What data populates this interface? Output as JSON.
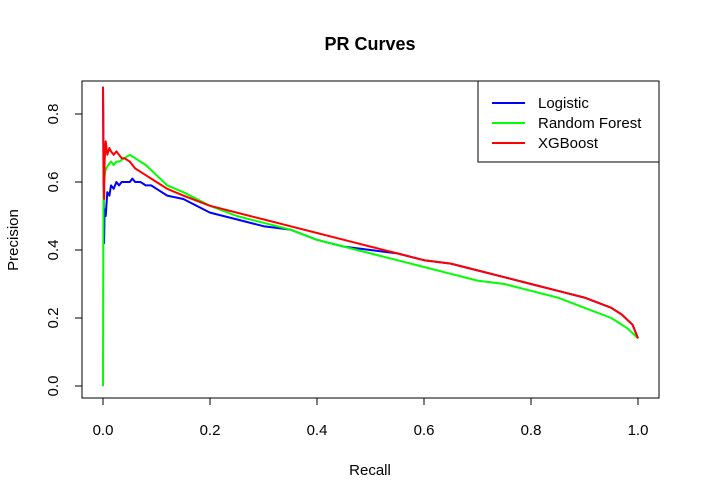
{
  "chart_data": {
    "type": "line",
    "title": "PR Curves",
    "xlabel": "Recall",
    "ylabel": "Precision",
    "xlim": [
      0,
      1
    ],
    "ylim": [
      0,
      0.88
    ],
    "xticks": [
      0.0,
      0.2,
      0.4,
      0.6,
      0.8,
      1.0
    ],
    "xtick_labels": [
      "0.0",
      "0.2",
      "0.4",
      "0.6",
      "0.8",
      "1.0"
    ],
    "yticks": [
      0.0,
      0.2,
      0.4,
      0.6,
      0.8
    ],
    "ytick_labels": [
      "0.0",
      "0.2",
      "0.4",
      "0.6",
      "0.8"
    ],
    "grid": false,
    "legend_position": "top-right",
    "series": [
      {
        "name": "Logistic",
        "color": "#0000FF",
        "x": [
          0.0,
          0.001,
          0.002,
          0.003,
          0.005,
          0.008,
          0.012,
          0.015,
          0.02,
          0.025,
          0.03,
          0.035,
          0.04,
          0.05,
          0.055,
          0.06,
          0.07,
          0.08,
          0.09,
          0.1,
          0.12,
          0.15,
          0.2,
          0.25,
          0.3,
          0.35,
          0.4,
          0.45,
          0.5,
          0.55,
          0.6,
          0.65,
          0.7,
          0.75,
          0.8,
          0.85,
          0.9,
          0.95,
          0.97,
          0.99,
          1.0
        ],
        "y": [
          0.88,
          0.62,
          0.42,
          0.52,
          0.5,
          0.57,
          0.56,
          0.59,
          0.58,
          0.6,
          0.59,
          0.6,
          0.6,
          0.6,
          0.61,
          0.6,
          0.6,
          0.59,
          0.59,
          0.58,
          0.56,
          0.55,
          0.51,
          0.49,
          0.47,
          0.46,
          0.43,
          0.41,
          0.4,
          0.39,
          0.37,
          0.36,
          0.34,
          0.32,
          0.3,
          0.28,
          0.26,
          0.23,
          0.21,
          0.18,
          0.14
        ]
      },
      {
        "name": "Random Forest",
        "color": "#00FF00",
        "x": [
          0.0,
          0.0005,
          0.001,
          0.002,
          0.004,
          0.006,
          0.01,
          0.015,
          0.02,
          0.025,
          0.03,
          0.04,
          0.05,
          0.06,
          0.07,
          0.08,
          0.1,
          0.12,
          0.15,
          0.2,
          0.25,
          0.3,
          0.35,
          0.4,
          0.45,
          0.5,
          0.55,
          0.6,
          0.65,
          0.7,
          0.75,
          0.8,
          0.85,
          0.9,
          0.95,
          0.98,
          1.0
        ],
        "y": [
          0.0,
          0.42,
          0.55,
          0.6,
          0.63,
          0.64,
          0.65,
          0.66,
          0.65,
          0.66,
          0.66,
          0.67,
          0.68,
          0.67,
          0.66,
          0.65,
          0.62,
          0.59,
          0.57,
          0.53,
          0.5,
          0.48,
          0.46,
          0.43,
          0.41,
          0.39,
          0.37,
          0.35,
          0.33,
          0.31,
          0.3,
          0.28,
          0.26,
          0.23,
          0.2,
          0.17,
          0.14
        ]
      },
      {
        "name": "XGBoost",
        "color": "#FF0000",
        "x": [
          0.0,
          0.0005,
          0.001,
          0.002,
          0.003,
          0.005,
          0.008,
          0.012,
          0.015,
          0.02,
          0.025,
          0.03,
          0.035,
          0.04,
          0.05,
          0.06,
          0.08,
          0.1,
          0.12,
          0.15,
          0.2,
          0.25,
          0.3,
          0.35,
          0.4,
          0.45,
          0.5,
          0.55,
          0.6,
          0.65,
          0.7,
          0.75,
          0.8,
          0.85,
          0.9,
          0.95,
          0.97,
          0.99,
          1.0
        ],
        "y": [
          0.88,
          0.8,
          0.62,
          0.55,
          0.66,
          0.72,
          0.68,
          0.7,
          0.69,
          0.68,
          0.69,
          0.68,
          0.67,
          0.67,
          0.66,
          0.64,
          0.62,
          0.6,
          0.58,
          0.56,
          0.53,
          0.51,
          0.49,
          0.47,
          0.45,
          0.43,
          0.41,
          0.39,
          0.37,
          0.36,
          0.34,
          0.32,
          0.3,
          0.28,
          0.26,
          0.23,
          0.21,
          0.18,
          0.14
        ]
      }
    ]
  }
}
